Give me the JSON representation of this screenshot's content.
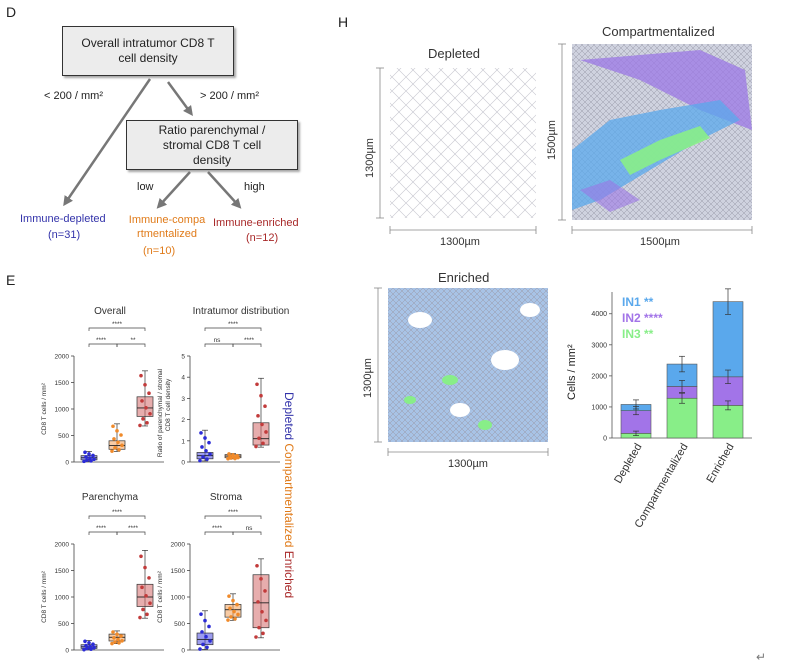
{
  "panel_labels": {
    "D": "D",
    "E": "E",
    "H": "H"
  },
  "flowchart": {
    "top_box": "Overall intratumor CD8 T cell density",
    "second_box": "Ratio parenchymal / stromal CD8 T cell density",
    "edge_left": "< 200 / mm²",
    "edge_right": "> 200 / mm²",
    "edge_low": "low",
    "edge_high": "high",
    "leaf_depleted": "Immune-depleted",
    "leaf_depleted_n": "(n=31)",
    "leaf_comp": "Immune-compartmentalized",
    "leaf_comp_n": "(n=10)",
    "leaf_enriched": "Immune-enriched",
    "leaf_enriched_n": "(n=12)",
    "colors": {
      "depleted": "#3333aa",
      "comp": "#e07b1a",
      "enriched": "#a82828"
    }
  },
  "legend_vertical": {
    "depleted": "Depleted",
    "comp": "Compartmentalized",
    "enriched": "Enriched"
  },
  "boxplots": [
    {
      "title": "Overall",
      "ylabel": "CD8 T cells / mm²",
      "yticks": [
        "0",
        "500",
        "1000",
        "1500",
        "2000"
      ],
      "ymax": 2000,
      "sig": [
        "****",
        "****",
        "**"
      ],
      "groups": [
        {
          "q1": 40,
          "med": 80,
          "q3": 120,
          "min": 10,
          "max": 200
        },
        {
          "q1": 240,
          "med": 310,
          "q3": 400,
          "min": 200,
          "max": 720
        },
        {
          "q1": 860,
          "med": 1020,
          "q3": 1230,
          "min": 680,
          "max": 1720
        }
      ]
    },
    {
      "title": "Intratumor distribution",
      "ylabel": "Ratio of parenchymal / stromal CD8 T cell density",
      "yticks": [
        "0",
        "1",
        "2",
        "3",
        "4",
        "5"
      ],
      "ymax": 5,
      "sig": [
        "****",
        "ns",
        "****"
      ],
      "groups": [
        {
          "q1": 0.15,
          "med": 0.3,
          "q3": 0.45,
          "min": 0.05,
          "max": 1.5
        },
        {
          "q1": 0.2,
          "med": 0.28,
          "q3": 0.35,
          "min": 0.15,
          "max": 0.4
        },
        {
          "q1": 0.8,
          "med": 1.1,
          "q3": 1.85,
          "min": 0.7,
          "max": 3.95
        }
      ]
    },
    {
      "title": "Parenchyma",
      "ylabel": "CD8 T cells / mm²",
      "yticks": [
        "0",
        "500",
        "1000",
        "1500",
        "2000"
      ],
      "ymax": 2000,
      "sig": [
        "****",
        "****",
        "****"
      ],
      "groups": [
        {
          "q1": 30,
          "med": 60,
          "q3": 100,
          "min": 5,
          "max": 180
        },
        {
          "q1": 170,
          "med": 240,
          "q3": 300,
          "min": 120,
          "max": 360
        },
        {
          "q1": 820,
          "med": 1000,
          "q3": 1240,
          "min": 600,
          "max": 1880
        }
      ]
    },
    {
      "title": "Stroma",
      "ylabel": "CD8 T cells / mm²",
      "yticks": [
        "0",
        "500",
        "1000",
        "1500",
        "2000"
      ],
      "ymax": 2000,
      "sig": [
        "****",
        "****",
        "ns"
      ],
      "groups": [
        {
          "q1": 100,
          "med": 200,
          "q3": 320,
          "min": 10,
          "max": 740
        },
        {
          "q1": 620,
          "med": 760,
          "q3": 860,
          "min": 560,
          "max": 1060
        },
        {
          "q1": 420,
          "med": 890,
          "q3": 1420,
          "min": 230,
          "max": 1720
        }
      ]
    }
  ],
  "maps": {
    "depleted": {
      "title": "Depleted",
      "width": "1300µm",
      "height": "1300µm"
    },
    "compartmentalized": {
      "title": "Compartmentalized",
      "width": "1500µm",
      "height": "1500µm"
    },
    "enriched": {
      "title": "Enriched",
      "width": "1300µm",
      "height": "1300µm"
    }
  },
  "chart_data": {
    "type": "bar",
    "stacked": true,
    "categories": [
      "Depleted",
      "Compartmentalized",
      "Enriched"
    ],
    "ylabel": "Cells / mm²",
    "ylim": [
      0,
      4700
    ],
    "yticks": [
      0,
      1000,
      2000,
      3000,
      4000
    ],
    "series": [
      {
        "name": "IN3",
        "values": [
          150,
          1280,
          1050
        ],
        "color": "#88ee88",
        "sig": "**"
      },
      {
        "name": "IN2",
        "values": [
          730,
          380,
          920
        ],
        "color": "#a274e8",
        "sig": "****"
      },
      {
        "name": "IN1",
        "values": [
          200,
          720,
          2420
        ],
        "color": "#5aa8ec",
        "sig": "**"
      }
    ]
  }
}
